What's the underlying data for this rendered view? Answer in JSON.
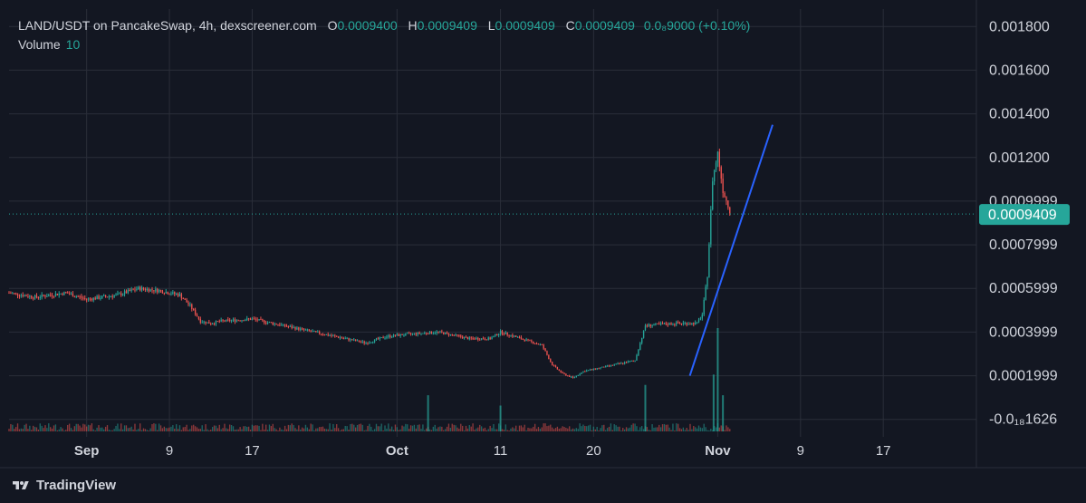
{
  "header": {
    "symbol": "LAND/USDT on PancakeSwap, 4h, dexscreener.com",
    "open_label": "O",
    "open": "0.0009400",
    "high_label": "H",
    "high": "0.0009409",
    "low_label": "L",
    "low": "0.0009409",
    "close_label": "C",
    "close": "0.0009409",
    "change": "0.0₈9000 (+0.10%)",
    "volume_label": "Volume",
    "volume_value": "10"
  },
  "footer": {
    "brand": "TradingView"
  },
  "colors": {
    "background": "#131722",
    "up": "#26a69a",
    "down": "#ef5350",
    "trendline": "#2962ff",
    "text": "#d1d4dc",
    "grid": "#2a2e39"
  },
  "chart_data": {
    "type": "candlestick",
    "price_axis": {
      "ticks": [
        {
          "value": 0.0018,
          "label": "0.001800"
        },
        {
          "value": 0.0016,
          "label": "0.001600"
        },
        {
          "value": 0.0014,
          "label": "0.001400"
        },
        {
          "value": 0.0012,
          "label": "0.001200"
        },
        {
          "value": 0.001,
          "label": "0.0009999"
        },
        {
          "value": 0.0008,
          "label": "0.0007999"
        },
        {
          "value": 0.0006,
          "label": "0.0005999"
        },
        {
          "value": 0.0004,
          "label": "0.0003999"
        },
        {
          "value": 0.0002,
          "label": "0.0001999"
        },
        {
          "value": 0.0,
          "label": "-0.0₁₈1626"
        }
      ],
      "range": [
        -8e-05,
        0.00188
      ],
      "current_price": 0.0009409,
      "current_label": "0.0009409"
    },
    "time_axis": {
      "ticks": [
        {
          "day": 0,
          "label": "Sep"
        },
        {
          "day": 8,
          "label": "9"
        },
        {
          "day": 16,
          "label": "17"
        },
        {
          "day": 30,
          "label": "Oct"
        },
        {
          "day": 40,
          "label": "11"
        },
        {
          "day": 49,
          "label": "20"
        },
        {
          "day": 61,
          "label": "Nov"
        },
        {
          "day": 69,
          "label": "9"
        },
        {
          "day": 77,
          "label": "17"
        }
      ],
      "range_days": [
        -7.5,
        86
      ]
    },
    "anchors": [
      [
        -7.5,
        0.00058
      ],
      [
        -5,
        0.00056
      ],
      [
        -2,
        0.00058
      ],
      [
        0,
        0.00055
      ],
      [
        3,
        0.00057
      ],
      [
        5,
        0.0006
      ],
      [
        7,
        0.00059
      ],
      [
        9,
        0.00057
      ],
      [
        10,
        0.00052
      ],
      [
        11,
        0.00045
      ],
      [
        12,
        0.00044
      ],
      [
        13,
        0.00045
      ],
      [
        16,
        0.00046
      ],
      [
        19,
        0.00043
      ],
      [
        22,
        0.0004
      ],
      [
        25,
        0.00037
      ],
      [
        27,
        0.00035
      ],
      [
        29,
        0.00038
      ],
      [
        31,
        0.00039
      ],
      [
        34,
        0.0004
      ],
      [
        37,
        0.00037
      ],
      [
        39,
        0.00037
      ],
      [
        40,
        0.0004
      ],
      [
        42,
        0.00037
      ],
      [
        44,
        0.00034
      ],
      [
        45,
        0.00025
      ],
      [
        46,
        0.00021
      ],
      [
        47,
        0.00019
      ],
      [
        48,
        0.00022
      ],
      [
        50,
        0.00024
      ],
      [
        52,
        0.00026
      ],
      [
        53,
        0.00027
      ],
      [
        54,
        0.00043
      ],
      [
        57,
        0.00044
      ],
      [
        59,
        0.00044
      ],
      [
        59.5,
        0.00048
      ],
      [
        60,
        0.00066
      ],
      [
        60.5,
        0.0011
      ],
      [
        61,
        0.00122
      ],
      [
        61.5,
        0.00105
      ],
      [
        62.3,
        0.00094
      ]
    ],
    "trendline": [
      [
        58.3,
        0.0002
      ],
      [
        66.3,
        0.00135
      ]
    ],
    "volume_spikes": [
      {
        "day": 54,
        "height": 0.45
      },
      {
        "day": 60.6,
        "height": 0.55
      },
      {
        "day": 61.0,
        "height": 1.0
      },
      {
        "day": 61.5,
        "height": 0.35
      },
      {
        "day": 33,
        "height": 0.35
      },
      {
        "day": 40,
        "height": 0.25
      }
    ]
  }
}
